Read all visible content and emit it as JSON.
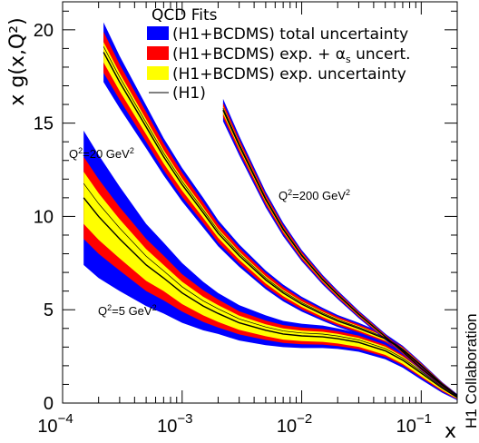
{
  "chart_data": {
    "type": "area",
    "xlabel": "x",
    "ylabel": "x g(x,Q²)",
    "xscale": "log",
    "xlim": [
      0.0001,
      0.2
    ],
    "ylim": [
      0,
      21.5
    ],
    "x_ticks": [
      {
        "base": "10",
        "exp": "−4",
        "value": 0.0001
      },
      {
        "base": "10",
        "exp": "−3",
        "value": 0.001
      },
      {
        "base": "10",
        "exp": "−2",
        "value": 0.01
      },
      {
        "base": "10",
        "exp": "−1",
        "value": 0.1
      }
    ],
    "y_ticks": [
      0,
      5,
      10,
      15,
      20
    ],
    "legend": {
      "title": "QCD Fits",
      "position": "top-right",
      "entries": [
        {
          "label": "(H1+BCDMS) total uncertainty",
          "color": "#0000ff",
          "style": "box"
        },
        {
          "label": "(H1+BCDMS) exp. + α",
          "sub": "s",
          "suffix": " uncert.",
          "color": "#ff0000",
          "style": "box"
        },
        {
          "label": "(H1+BCDMS) exp. uncertainty",
          "color": "#ffff00",
          "style": "box"
        },
        {
          "label": "(H1)",
          "color": "#000000",
          "style": "line"
        }
      ]
    },
    "series": [
      {
        "name": "Q²=5 GeV²",
        "label_q": "Q",
        "label_rest": "=5 GeV",
        "x": [
          0.00015,
          0.0002,
          0.0003,
          0.0005,
          0.0007,
          0.001,
          0.0015,
          0.002,
          0.003,
          0.005,
          0.007,
          0.01,
          0.015,
          0.02,
          0.03,
          0.05,
          0.07,
          0.1,
          0.15,
          0.2
        ],
        "central": [
          11.0,
          10.0,
          8.8,
          7.4,
          6.7,
          5.9,
          5.2,
          4.8,
          4.3,
          3.9,
          3.7,
          3.6,
          3.55,
          3.45,
          3.25,
          2.8,
          2.3,
          1.6,
          0.8,
          0.3
        ],
        "band_blue": [
          3.6,
          3.3,
          2.8,
          2.2,
          1.9,
          1.6,
          1.3,
          1.1,
          0.95,
          0.8,
          0.7,
          0.65,
          0.6,
          0.55,
          0.5,
          0.45,
          0.4,
          0.35,
          0.25,
          0.15
        ],
        "band_red": [
          2.2,
          2.0,
          1.7,
          1.4,
          1.2,
          1.0,
          0.85,
          0.75,
          0.62,
          0.52,
          0.48,
          0.45,
          0.42,
          0.4,
          0.36,
          0.32,
          0.28,
          0.24,
          0.18,
          0.1
        ],
        "band_yellow": [
          1.4,
          1.25,
          1.05,
          0.85,
          0.7,
          0.6,
          0.5,
          0.45,
          0.38,
          0.32,
          0.3,
          0.28,
          0.27,
          0.26,
          0.24,
          0.22,
          0.2,
          0.17,
          0.12,
          0.07
        ]
      },
      {
        "name": "Q²=20 GeV²",
        "label_q": "Q",
        "label_rest": "=20 GeV",
        "x": [
          0.00022,
          0.0003,
          0.0005,
          0.0007,
          0.001,
          0.0015,
          0.002,
          0.003,
          0.005,
          0.007,
          0.01,
          0.015,
          0.02,
          0.03,
          0.05,
          0.07,
          0.1,
          0.15,
          0.2
        ],
        "central": [
          18.8,
          17.2,
          14.8,
          13.2,
          11.7,
          10.2,
          9.1,
          7.9,
          6.6,
          5.9,
          5.3,
          4.75,
          4.4,
          4.0,
          3.45,
          2.85,
          2.0,
          1.0,
          0.4
        ],
        "band_blue": [
          1.6,
          1.4,
          1.15,
          1.0,
          0.9,
          0.8,
          0.7,
          0.6,
          0.5,
          0.45,
          0.4,
          0.35,
          0.32,
          0.3,
          0.26,
          0.22,
          0.18,
          0.12,
          0.08
        ],
        "band_red": [
          1.1,
          0.95,
          0.8,
          0.72,
          0.65,
          0.55,
          0.5,
          0.42,
          0.36,
          0.32,
          0.28,
          0.25,
          0.23,
          0.21,
          0.18,
          0.16,
          0.13,
          0.09,
          0.06
        ],
        "band_yellow": [
          0.55,
          0.48,
          0.4,
          0.36,
          0.32,
          0.28,
          0.25,
          0.22,
          0.19,
          0.17,
          0.15,
          0.14,
          0.13,
          0.12,
          0.11,
          0.1,
          0.08,
          0.06,
          0.04
        ]
      },
      {
        "name": "Q²=200 GeV²",
        "label_q": "Q",
        "label_rest": "=200 GeV",
        "x": [
          0.0022,
          0.003,
          0.005,
          0.007,
          0.01,
          0.015,
          0.02,
          0.03,
          0.05,
          0.07,
          0.1,
          0.15,
          0.2
        ],
        "central": [
          15.7,
          13.8,
          10.9,
          9.3,
          7.9,
          6.6,
          5.8,
          4.75,
          3.55,
          2.75,
          1.85,
          0.95,
          0.4
        ],
        "band_blue": [
          0.6,
          0.52,
          0.42,
          0.36,
          0.3,
          0.26,
          0.23,
          0.2,
          0.17,
          0.15,
          0.12,
          0.09,
          0.06
        ],
        "band_red": [
          0.38,
          0.33,
          0.27,
          0.23,
          0.2,
          0.17,
          0.15,
          0.13,
          0.11,
          0.1,
          0.08,
          0.06,
          0.04
        ],
        "band_yellow": [
          0.2,
          0.17,
          0.14,
          0.12,
          0.1,
          0.09,
          0.08,
          0.07,
          0.06,
          0.05,
          0.04,
          0.03,
          0.02
        ]
      }
    ],
    "annotations": {
      "collaboration": "H1 Collaboration"
    },
    "colors": {
      "band_blue": "#0000ff",
      "band_red": "#ff0000",
      "band_yellow": "#ffff00",
      "central_line": "#000000"
    }
  }
}
